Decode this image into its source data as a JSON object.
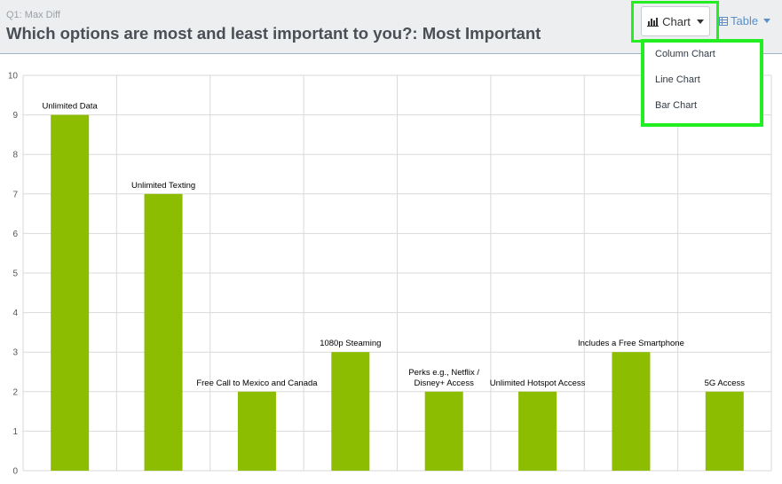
{
  "header": {
    "question_label": "Q1: Max Diff",
    "title": "Which options are most and least important to you?: Most Important"
  },
  "toolbar": {
    "chart_button": {
      "icon": "bar-chart-icon",
      "label": "Chart"
    },
    "table_button": {
      "icon": "table-icon",
      "label": "Table"
    }
  },
  "chart_menu": {
    "items": [
      "Column Chart",
      "Line Chart",
      "Bar Chart"
    ]
  },
  "colors": {
    "bar": "#8dbd00",
    "highlight": "#22ee22"
  },
  "chart_data": {
    "type": "bar",
    "categories": [
      "Unlimited Data",
      "Unlimited Texting",
      "Free Call to Mexico and Canada",
      "1080p Steaming",
      "Perks e.g., Netflix / Disney+ Access",
      "Unlimited Hotspot Access",
      "Includes a Free Smartphone",
      "5G Access"
    ],
    "values": [
      9,
      7,
      2,
      3,
      2,
      2,
      3,
      2
    ],
    "ylim": [
      0,
      10
    ],
    "yticks": [
      0,
      1,
      2,
      3,
      4,
      5,
      6,
      7,
      8,
      9,
      10
    ],
    "grid": true,
    "data_labels": true
  }
}
